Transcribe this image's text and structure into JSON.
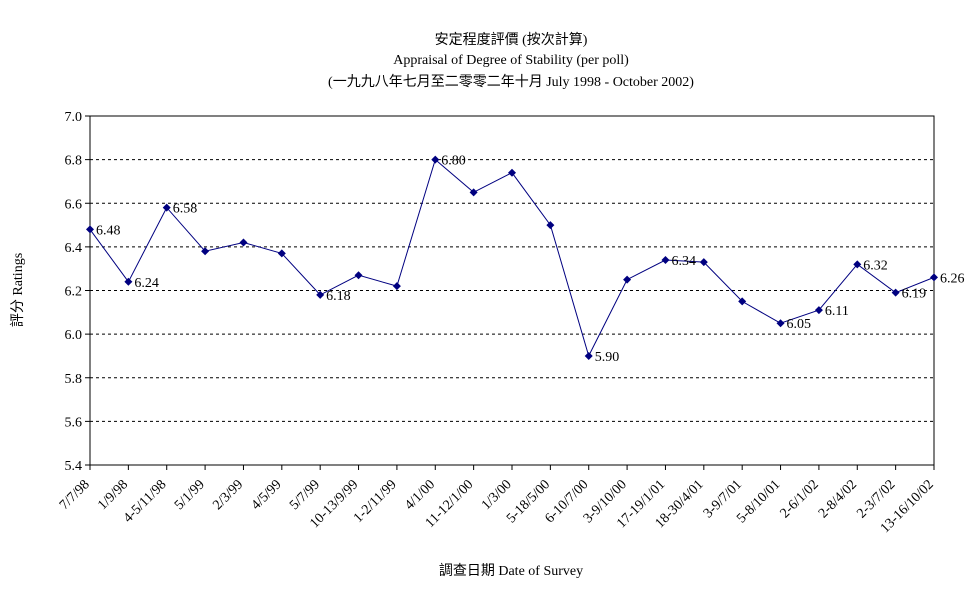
{
  "chart_data": {
    "type": "line",
    "title": "安定程度評價 (按次計算)",
    "subtitle": "Appraisal of Degree of Stability (per poll)",
    "subtitle2": "(一九九八年七月至二零零二年十月 July 1998 - October 2002)",
    "xlabel": "調查日期 Date of Survey",
    "ylabel": "評分 Ratings",
    "ylim": [
      5.4,
      7.0
    ],
    "yticks": [
      "5.4",
      "5.6",
      "5.8",
      "6.0",
      "6.2",
      "6.4",
      "6.6",
      "6.8",
      "7.0"
    ],
    "grid": true,
    "legend": "none",
    "line_color": "#000080",
    "categories": [
      "7/7/98",
      "1/9/98",
      "4-5/11/98",
      "5/1/99",
      "2/3/99",
      "4/5/99",
      "5/7/99",
      "10-13/9/99",
      "1-2/11/99",
      "4/1/00",
      "11-12/1/00",
      "1/3/00",
      "5-18/5/00",
      "6-10/7/00",
      "3-9/10/00",
      "17-19/1/01",
      "18-30/4/01",
      "3-9/7/01",
      "5-8/10/01",
      "2-6/1/02",
      "2-8/4/02",
      "2-3/7/02",
      "13-16/10/02"
    ],
    "series": [
      {
        "values": [
          6.48,
          6.24,
          6.58,
          6.38,
          6.42,
          6.37,
          6.18,
          6.27,
          6.22,
          6.8,
          6.65,
          6.74,
          6.5,
          5.9,
          6.25,
          6.34,
          6.33,
          6.15,
          6.05,
          6.11,
          6.32,
          6.19,
          6.26
        ],
        "data_labels": [
          "6.48",
          "6.24",
          "6.58",
          "",
          "",
          "",
          "6.18",
          "",
          "",
          "6.80",
          "",
          "",
          "",
          "5.90",
          "",
          "6.34",
          "",
          "",
          "6.05",
          "6.11",
          "6.32",
          "6.19",
          "6.26"
        ]
      }
    ]
  }
}
